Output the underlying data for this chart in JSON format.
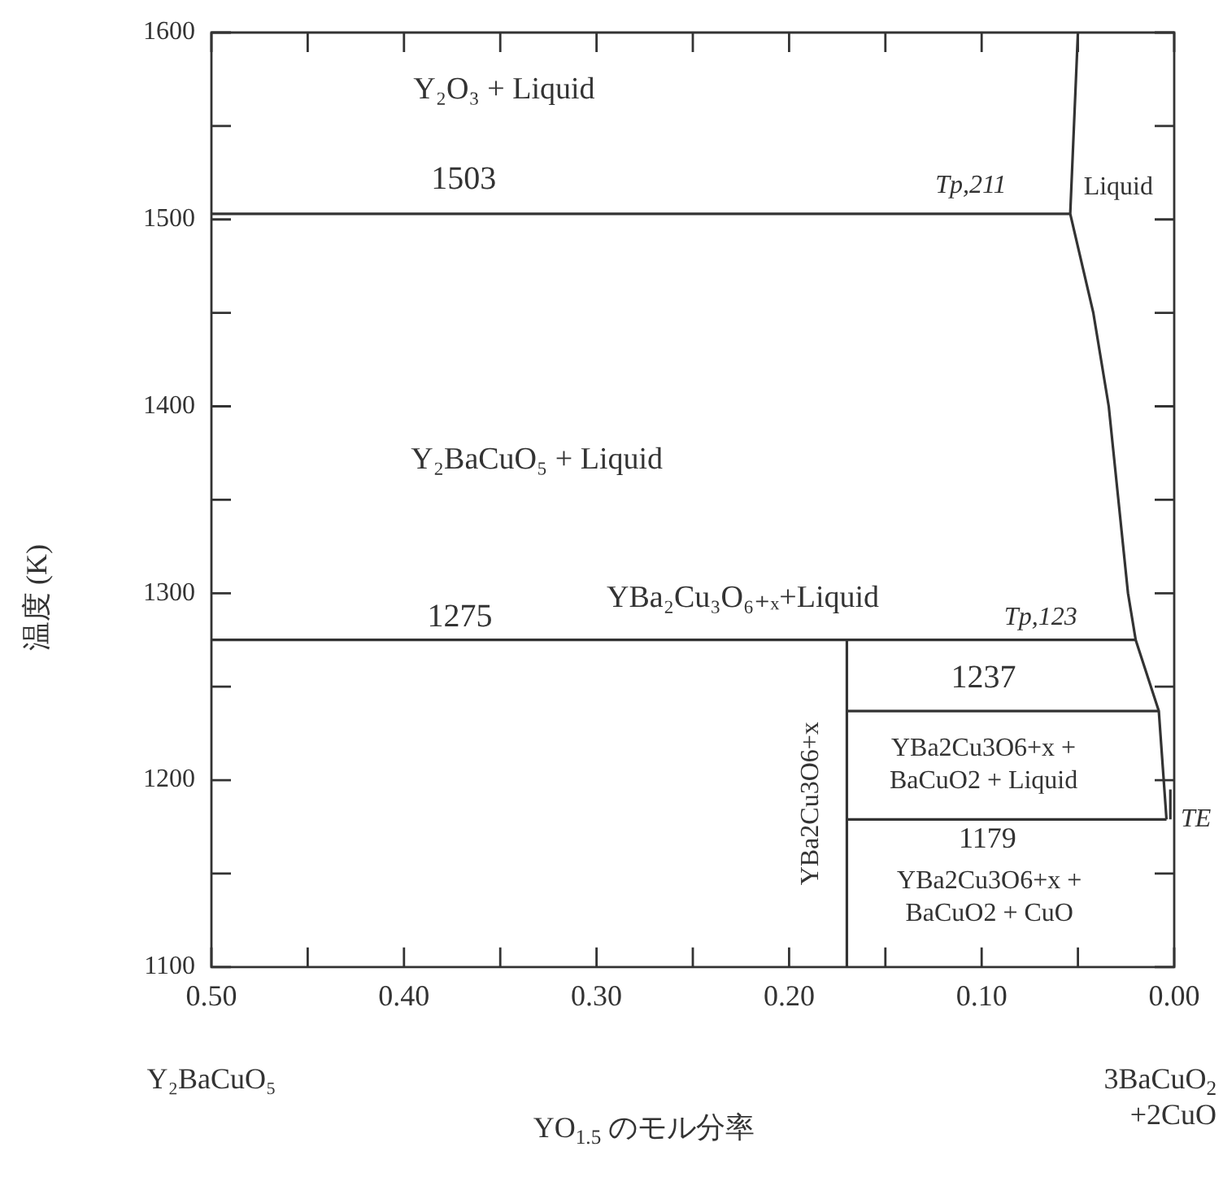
{
  "chart_data": {
    "type": "line",
    "xlabel": "YO$_{1.5}$ のモル分率",
    "ylabel": "温度 (K)",
    "xlim": [
      0.5,
      0
    ],
    "ylim": [
      1100,
      1600
    ],
    "xticks": [
      {
        "value": 0.5,
        "label": "0.50"
      },
      {
        "value": 0.45,
        "label": null
      },
      {
        "value": 0.4,
        "label": "0.40"
      },
      {
        "value": 0.35,
        "label": null
      },
      {
        "value": 0.3,
        "label": "0.30"
      },
      {
        "value": 0.25,
        "label": null
      },
      {
        "value": 0.2,
        "label": "0.20"
      },
      {
        "value": 0.15,
        "label": null
      },
      {
        "value": 0.1,
        "label": "0.10"
      },
      {
        "value": 0.05,
        "label": null
      },
      {
        "value": 0,
        "label": "0.00"
      }
    ],
    "yticks": [
      1100,
      {
        "value": 1150,
        "label": null
      },
      1200,
      {
        "value": 1250,
        "label": null
      },
      1300,
      {
        "value": 1350,
        "label": null
      },
      1400,
      {
        "value": 1450,
        "label": null
      },
      1500,
      {
        "value": 1550,
        "label": null
      },
      1600
    ],
    "series": [
      {
        "color": "#333333",
        "x": [
          0.5,
          0.054
        ],
        "values": [
          1503,
          1503
        ]
      },
      {
        "color": "#333333",
        "x": [
          0.05,
          0.054,
          0.042,
          0.034,
          0.029,
          0.024,
          0.02,
          0.008,
          0.004
        ],
        "values": [
          1600,
          1503,
          1450,
          1400,
          1350,
          1300,
          1275,
          1237,
          1179
        ]
      },
      {
        "color": "#333333",
        "x": [
          0.5,
          0.02
        ],
        "values": [
          1275,
          1275
        ]
      },
      {
        "color": "#333333",
        "x": [
          0.17,
          0.008
        ],
        "values": [
          1237,
          1237
        ]
      },
      {
        "color": "#333333",
        "x": [
          0.17,
          0.004
        ],
        "values": [
          1179,
          1179
        ]
      },
      {
        "color": "#333333",
        "x": [
          0.002,
          0.002
        ],
        "values": [
          1179,
          1195
        ]
      },
      {
        "name": "YBa2Cu3O6+x",
        "color": "#333333",
        "x": [
          0.17,
          0.17
        ],
        "values": [
          1100,
          1275
        ]
      }
    ],
    "annotations": [
      "Y₂O₃ + Liquid",
      "1503",
      "Tp,211",
      "Liquid",
      "Y₂BaCuO₅ + Liquid",
      "YBa₂Cu₃O₆₊ₓ+Liquid",
      "1275",
      "Tp,123",
      "1237",
      "YBa2Cu3O6+x +\nBaCuO2 + Liquid",
      "1179",
      "YBa2Cu3O6+x +\nBaCuO2 + CuO",
      "TE",
      "Y₂BaCuO₅",
      "3BaCuO$_{2}$\n+2CuO"
    ]
  }
}
